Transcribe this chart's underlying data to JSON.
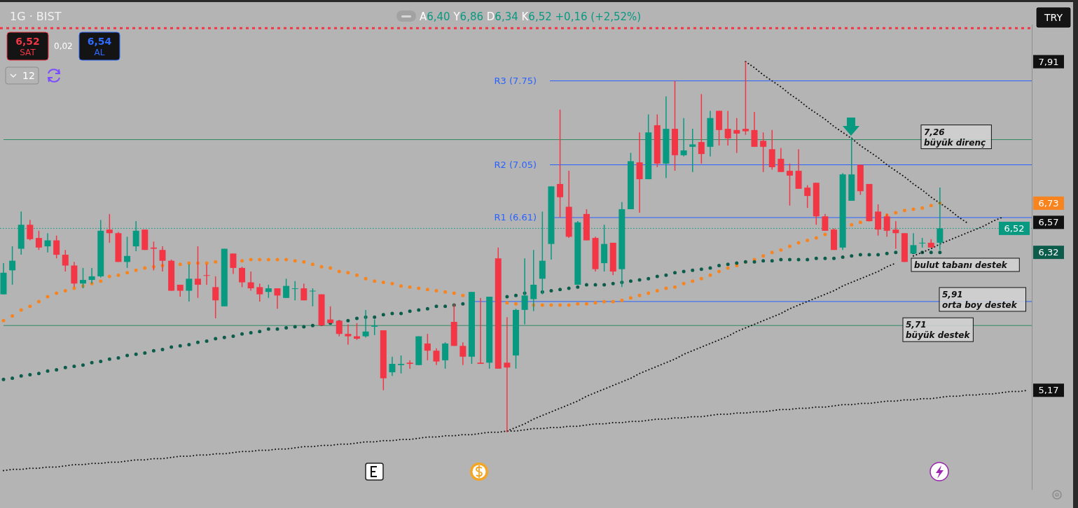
{
  "chart_data": {
    "type": "candlestick",
    "title": "1G · BIST",
    "subtitle": "A6,40 Y6,86 D6,34 K6,52 +0,16 (+2,52%)",
    "categories": [
      null,
      null,
      null,
      null,
      null,
      null,
      null,
      null,
      null,
      null,
      null,
      null,
      null,
      null,
      null,
      null,
      null,
      null,
      null,
      null,
      null,
      null,
      null,
      null,
      null,
      null,
      null,
      null,
      null,
      null,
      null,
      null,
      null,
      null,
      null,
      null,
      null,
      null,
      null,
      null,
      null,
      null,
      null,
      null,
      null,
      null,
      null,
      null,
      null,
      null,
      null,
      null,
      null,
      null,
      null,
      null,
      null,
      null,
      null,
      null,
      null,
      null,
      null,
      null,
      null,
      null,
      null,
      null,
      null,
      null,
      null,
      null,
      null,
      null,
      null,
      null,
      null,
      null,
      null,
      null,
      null,
      null,
      null,
      null,
      null,
      null,
      null,
      null,
      null,
      null,
      null,
      null,
      null,
      null,
      null,
      null,
      null,
      null,
      null,
      null,
      null,
      null,
      null,
      null,
      null,
      null,
      null,
      null,
      null,
      null,
      null,
      null,
      null,
      null,
      null,
      null,
      null
    ],
    "ohlc": [
      [
        5.97,
        6.23,
        5.97,
        6.15
      ],
      [
        6.17,
        6.37,
        6.05,
        6.25
      ],
      [
        6.35,
        6.66,
        6.3,
        6.55
      ],
      [
        6.55,
        6.59,
        6.42,
        6.43
      ],
      [
        6.44,
        6.5,
        6.34,
        6.36
      ],
      [
        6.37,
        6.48,
        6.32,
        6.42
      ],
      [
        6.42,
        6.46,
        6.27,
        6.3
      ],
      [
        6.3,
        6.34,
        6.16,
        6.21
      ],
      [
        6.21,
        6.24,
        6.03,
        6.06
      ],
      [
        6.06,
        6.19,
        6.02,
        6.09
      ],
      [
        6.09,
        6.19,
        6.06,
        6.12
      ],
      [
        6.12,
        6.59,
        6.11,
        6.5
      ],
      [
        6.51,
        6.64,
        6.4,
        6.48
      ],
      [
        6.48,
        6.49,
        6.24,
        6.24
      ],
      [
        6.24,
        6.45,
        6.19,
        6.29
      ],
      [
        6.37,
        6.58,
        6.33,
        6.5
      ],
      [
        6.51,
        6.51,
        6.34,
        6.34
      ],
      [
        6.36,
        6.41,
        6.17,
        6.35
      ],
      [
        6.34,
        6.37,
        6.16,
        6.25
      ],
      [
        6.25,
        6.26,
        6.0,
        6.0
      ],
      [
        6.05,
        6.05,
        5.95,
        6.0
      ],
      [
        6.0,
        6.22,
        5.91,
        6.1
      ],
      [
        6.1,
        6.37,
        5.94,
        6.05
      ],
      [
        6.13,
        6.22,
        6.05,
        6.13
      ],
      [
        6.03,
        6.12,
        5.77,
        5.92
      ],
      [
        5.87,
        6.35,
        5.87,
        6.35
      ],
      [
        6.31,
        6.31,
        6.14,
        6.19
      ],
      [
        6.19,
        6.2,
        6.03,
        6.07
      ],
      [
        6.07,
        6.16,
        6.0,
        6.02
      ],
      [
        6.03,
        6.06,
        5.91,
        5.97
      ],
      [
        5.99,
        6.05,
        5.94,
        6.02
      ],
      [
        6.02,
        6.02,
        5.85,
        5.96
      ],
      [
        5.94,
        6.1,
        5.94,
        6.04
      ],
      [
        6.02,
        6.08,
        5.92,
        6.02
      ],
      [
        6.02,
        6.06,
        5.92,
        5.92
      ],
      [
        6.0,
        6.02,
        5.87,
        6.0
      ],
      [
        5.97,
        5.97,
        5.71,
        5.71
      ],
      [
        5.76,
        5.87,
        5.73,
        5.73
      ],
      [
        5.75,
        5.75,
        5.62,
        5.64
      ],
      [
        5.64,
        5.72,
        5.55,
        5.62
      ],
      [
        5.62,
        5.73,
        5.59,
        5.6
      ],
      [
        5.62,
        5.84,
        5.61,
        5.66
      ],
      [
        5.7,
        5.76,
        5.63,
        5.71
      ],
      [
        5.67,
        5.67,
        5.17,
        5.27
      ],
      [
        5.32,
        5.45,
        5.29,
        5.39
      ],
      [
        5.38,
        5.46,
        5.31,
        5.39
      ],
      [
        5.4,
        5.42,
        5.35,
        5.39
      ],
      [
        5.38,
        5.62,
        5.38,
        5.62
      ],
      [
        5.56,
        5.64,
        5.42,
        5.5
      ],
      [
        5.5,
        5.52,
        5.38,
        5.41
      ],
      [
        5.42,
        5.57,
        5.35,
        5.56
      ],
      [
        5.74,
        5.89,
        5.54,
        5.54
      ],
      [
        5.54,
        5.57,
        5.38,
        5.45
      ],
      [
        5.45,
        5.99,
        5.39,
        5.99
      ],
      [
        5.4,
        5.94,
        5.39,
        5.39
      ],
      [
        5.4,
        5.95,
        5.35,
        5.95
      ],
      [
        6.27,
        6.36,
        5.35,
        5.35
      ],
      [
        5.4,
        5.78,
        4.82,
        5.36
      ],
      [
        5.46,
        5.85,
        5.35,
        5.84
      ],
      [
        5.84,
        6.27,
        5.72,
        5.96
      ],
      [
        5.93,
        6.34,
        5.83,
        6.05
      ],
      [
        6.1,
        6.66,
        5.97,
        6.25
      ],
      [
        6.39,
        6.87,
        6.26,
        6.87
      ],
      [
        6.89,
        7.51,
        6.61,
        6.78
      ],
      [
        6.7,
        7.0,
        6.44,
        6.45
      ],
      [
        6.05,
        6.58,
        6.05,
        6.57
      ],
      [
        6.64,
        6.68,
        6.42,
        6.42
      ],
      [
        6.44,
        6.45,
        6.16,
        6.18
      ],
      [
        6.23,
        6.55,
        6.16,
        6.39
      ],
      [
        6.4,
        6.4,
        6.13,
        6.16
      ],
      [
        6.18,
        6.74,
        6.03,
        6.68
      ],
      [
        6.68,
        7.15,
        6.68,
        7.08
      ],
      [
        7.07,
        7.32,
        6.65,
        6.93
      ],
      [
        6.93,
        7.47,
        6.93,
        7.32
      ],
      [
        7.38,
        7.47,
        7.03,
        7.06
      ],
      [
        7.06,
        7.62,
        6.94,
        7.35
      ],
      [
        7.35,
        7.75,
        7.0,
        7.13
      ],
      [
        7.13,
        7.44,
        7.12,
        7.17
      ],
      [
        7.2,
        7.35,
        6.99,
        7.22
      ],
      [
        7.24,
        7.64,
        7.06,
        7.14
      ],
      [
        7.2,
        7.5,
        7.12,
        7.44
      ],
      [
        7.5,
        7.5,
        7.21,
        7.34
      ],
      [
        7.35,
        7.5,
        7.21,
        7.27
      ],
      [
        7.34,
        7.44,
        7.15,
        7.31
      ],
      [
        7.35,
        7.91,
        7.3,
        7.33
      ],
      [
        7.34,
        7.49,
        7.2,
        7.2
      ],
      [
        7.25,
        7.32,
        6.99,
        7.2
      ],
      [
        7.18,
        7.34,
        7.01,
        7.03
      ],
      [
        7.1,
        7.19,
        6.99,
        6.99
      ],
      [
        7.0,
        7.06,
        6.71,
        6.96
      ],
      [
        7.0,
        7.18,
        6.85,
        6.85
      ],
      [
        6.86,
        6.88,
        6.69,
        6.79
      ],
      [
        6.9,
        6.9,
        6.55,
        6.62
      ],
      [
        6.62,
        6.64,
        6.5,
        6.5
      ],
      [
        6.51,
        6.52,
        6.34,
        6.34
      ],
      [
        6.36,
        6.98,
        6.34,
        6.97
      ],
      [
        6.75,
        7.28,
        6.75,
        6.97
      ],
      [
        7.05,
        7.05,
        6.8,
        6.83
      ],
      [
        6.89,
        6.89,
        6.58,
        6.58
      ],
      [
        6.66,
        6.72,
        6.46,
        6.51
      ],
      [
        6.62,
        6.64,
        6.45,
        6.5
      ],
      [
        6.51,
        6.58,
        6.35,
        6.48
      ],
      [
        6.48,
        6.48,
        6.24,
        6.24
      ],
      [
        6.31,
        6.48,
        6.31,
        6.38
      ],
      [
        6.4,
        6.44,
        6.36,
        6.4
      ],
      [
        6.4,
        6.43,
        6.36,
        6.36
      ],
      [
        6.4,
        6.86,
        6.34,
        6.52
      ],
      null,
      null,
      null,
      null,
      null,
      null,
      null,
      null,
      null,
      null
    ],
    "colors": [
      "#089981",
      "#089981",
      "#089981",
      "#f23645",
      "#f23645",
      "#089981",
      "#f23645",
      "#f23645",
      "#f23645",
      "#089981",
      "#089981",
      "#089981",
      "#f23645",
      "#f23645",
      "#089981",
      "#089981",
      "#f23645",
      "#f23645",
      "#f23645",
      "#f23645",
      "#f23645",
      "#089981",
      "#f23645",
      "#f23645",
      "#f23645",
      "#089981",
      "#f23645",
      "#f23645",
      "#f23645",
      "#f23645",
      "#089981",
      "#f23645",
      "#089981",
      "#089981",
      "#f23645",
      "#089981",
      "#f23645",
      "#f23645",
      "#f23645",
      "#f23645",
      "#f23645",
      "#089981",
      "#089981",
      "#f23645",
      "#089981",
      "#089981",
      "#f23645",
      "#089981",
      "#f23645",
      "#f23645",
      "#089981",
      "#f23645",
      "#f23645",
      "#089981",
      "#f23645",
      "#089981",
      "#f23645",
      "#f23645",
      "#089981",
      "#089981",
      "#089981",
      "#089981",
      "#089981",
      "#f23645",
      "#f23645",
      "#089981",
      "#f23645",
      "#f23645",
      "#089981",
      "#f23645",
      "#089981",
      "#089981",
      "#f23645",
      "#089981",
      "#f23645",
      "#089981",
      "#f23645",
      "#089981",
      "#089981",
      "#f23645",
      "#089981",
      "#f23645",
      "#f23645",
      "#f23645",
      "#f23645",
      "#f23645",
      "#f23645",
      "#f23645",
      "#f23645",
      "#f23645",
      "#f23645",
      "#f23645",
      "#f23645",
      "#f23645",
      "#f23645",
      "#089981",
      "#089981",
      "#f23645",
      "#f23645",
      "#f23645",
      "#f23645",
      "#f23645",
      "#f23645",
      "#089981",
      "#089981",
      "#f23645",
      "#089981",
      null,
      null,
      null,
      null,
      null,
      null,
      null,
      null,
      null,
      null
    ],
    "series": [
      {
        "type": "line",
        "color": "#f7841f",
        "line_style": "dotted",
        "values": [
          5.75,
          5.79,
          5.84,
          5.87,
          5.91,
          5.95,
          5.98,
          6.0,
          6.02,
          6.04,
          6.06,
          6.08,
          6.12,
          6.13,
          6.15,
          6.17,
          6.19,
          6.2,
          6.21,
          null,
          6.22,
          6.23,
          6.23,
          6.23,
          6.24,
          null,
          6.25,
          6.25,
          6.26,
          6.26,
          6.26,
          6.26,
          6.26,
          6.25,
          6.24,
          6.22,
          6.2,
          6.19,
          6.16,
          6.15,
          6.13,
          6.1,
          6.08,
          6.07,
          6.06,
          6.04,
          6.03,
          6.02,
          6.01,
          6.0,
          5.99,
          5.98,
          5.96,
          null,
          null,
          null,
          null,
          5.9,
          5.89,
          5.89,
          5.88,
          5.88,
          5.88,
          5.88,
          5.88,
          5.89,
          5.89,
          5.9,
          5.91,
          5.91,
          5.92,
          5.94,
          5.96,
          5.98,
          6.0,
          6.02,
          6.03,
          6.06,
          6.08,
          6.1,
          6.13,
          6.16,
          6.19,
          6.21,
          6.24,
          6.26,
          6.29,
          6.32,
          6.34,
          6.37,
          6.4,
          6.42,
          6.44,
          6.47,
          6.5,
          null,
          6.55,
          6.57,
          6.59,
          null,
          6.63,
          6.65,
          6.67,
          6.68,
          6.69,
          6.71,
          6.73,
          null,
          null,
          null,
          null,
          null,
          null,
          null,
          null,
          null,
          null
        ]
      },
      {
        "type": "line",
        "color": "#0b5c4a",
        "line_style": "dotted",
        "values": [
          5.26,
          5.27,
          5.29,
          5.3,
          5.31,
          5.33,
          5.34,
          5.36,
          5.37,
          5.38,
          5.4,
          5.41,
          5.43,
          5.44,
          5.46,
          5.47,
          5.48,
          5.5,
          5.51,
          5.53,
          5.54,
          5.55,
          5.57,
          5.58,
          5.6,
          5.61,
          5.62,
          5.64,
          5.65,
          5.66,
          5.68,
          5.68,
          5.69,
          5.7,
          5.7,
          5.71,
          5.72,
          5.73,
          5.74,
          5.75,
          5.77,
          5.78,
          5.78,
          5.8,
          5.81,
          5.81,
          5.83,
          5.84,
          5.85,
          5.87,
          5.87,
          5.88,
          5.89,
          null,
          null,
          null,
          null,
          5.95,
          5.96,
          5.98,
          5.99,
          5.99,
          6.0,
          6.01,
          6.02,
          6.03,
          6.05,
          6.05,
          6.05,
          6.06,
          6.07,
          6.08,
          6.09,
          6.1,
          6.12,
          6.13,
          6.15,
          6.16,
          6.17,
          6.18,
          6.19,
          6.21,
          6.22,
          6.23,
          6.24,
          6.24,
          6.25,
          6.25,
          6.26,
          6.26,
          6.26,
          6.26,
          6.27,
          6.27,
          6.27,
          6.28,
          6.29,
          6.3,
          6.3,
          6.3,
          6.31,
          6.32,
          null,
          6.32,
          6.32,
          6.32,
          6.32,
          null,
          null,
          null,
          null,
          null,
          null,
          null,
          null,
          null,
          null
        ]
      },
      {
        "type": "line",
        "color": "#111111",
        "line_style": "dotted",
        "values": [
          4.5,
          4.51,
          4.51,
          4.52,
          4.52,
          4.53,
          4.53,
          4.54,
          4.55,
          4.55,
          4.56,
          4.56,
          4.57,
          4.57,
          4.58,
          4.59,
          4.59,
          4.6,
          4.6,
          4.61,
          4.62,
          4.62,
          4.63,
          4.63,
          4.64,
          4.64,
          4.65,
          4.66,
          4.66,
          4.67,
          4.67,
          4.68,
          4.68,
          4.69,
          4.7,
          4.7,
          4.71,
          4.71,
          4.72,
          4.72,
          4.73,
          4.74,
          4.74,
          4.75,
          4.75,
          4.76,
          4.76,
          4.77,
          4.78,
          4.78,
          4.79,
          4.79,
          4.8,
          4.8,
          4.81,
          4.82,
          4.82,
          4.83,
          4.83,
          4.84,
          4.85,
          4.85,
          4.86,
          4.86,
          4.87,
          4.87,
          4.88,
          4.89,
          4.89,
          4.9,
          4.9,
          4.91,
          4.91,
          4.92,
          4.93,
          4.93,
          4.94,
          4.94,
          4.95,
          4.95,
          4.96,
          4.97,
          4.97,
          4.98,
          4.98,
          4.99,
          4.99,
          5.0,
          5.01,
          5.01,
          5.02,
          5.02,
          5.03,
          5.03,
          5.04,
          5.05,
          5.05,
          5.06,
          5.06,
          5.07,
          5.08,
          5.08,
          5.09,
          5.09,
          5.1,
          5.1,
          5.11,
          5.12,
          5.12,
          5.13,
          5.13,
          5.14,
          5.14,
          5.15,
          5.16,
          5.16,
          5.17
        ]
      },
      {
        "type": "line",
        "color": "#111111",
        "line_style": "dotted",
        "values": [
          null,
          null,
          null,
          null,
          null,
          null,
          null,
          null,
          null,
          null,
          null,
          null,
          null,
          null,
          null,
          null,
          null,
          null,
          null,
          null,
          null,
          null,
          null,
          null,
          null,
          null,
          null,
          null,
          null,
          null,
          null,
          null,
          null,
          null,
          null,
          null,
          null,
          null,
          null,
          null,
          null,
          null,
          null,
          null,
          null,
          null,
          null,
          null,
          null,
          null,
          null,
          null,
          null,
          null,
          null,
          null,
          null,
          4.83,
          4.86,
          4.89,
          4.93,
          4.96,
          4.99,
          5.02,
          5.05,
          5.08,
          5.12,
          5.15,
          5.18,
          5.21,
          5.24,
          5.27,
          5.31,
          5.34,
          5.37,
          5.4,
          5.43,
          5.47,
          5.5,
          5.53,
          5.56,
          5.59,
          5.62,
          5.66,
          5.69,
          5.72,
          5.75,
          5.78,
          5.81,
          5.85,
          5.88,
          5.91,
          5.94,
          5.97,
          6.0,
          6.04,
          6.07,
          6.1,
          6.13,
          6.16,
          6.2,
          6.23,
          null,
          6.29,
          6.32,
          6.35,
          6.39,
          6.42,
          6.45,
          6.48,
          6.51,
          6.54,
          6.58,
          6.61,
          null,
          null,
          null
        ]
      },
      {
        "type": "line",
        "color": "#111111",
        "line_style": "dotted",
        "values": [
          null,
          null,
          null,
          null,
          null,
          null,
          null,
          null,
          null,
          null,
          null,
          null,
          null,
          null,
          null,
          null,
          null,
          null,
          null,
          null,
          null,
          null,
          null,
          null,
          null,
          null,
          null,
          null,
          null,
          null,
          null,
          null,
          null,
          null,
          null,
          null,
          null,
          null,
          null,
          null,
          null,
          null,
          null,
          null,
          null,
          null,
          null,
          null,
          null,
          null,
          null,
          null,
          null,
          null,
          null,
          null,
          null,
          null,
          null,
          null,
          null,
          null,
          null,
          null,
          null,
          null,
          null,
          null,
          null,
          null,
          null,
          null,
          null,
          null,
          null,
          null,
          null,
          null,
          null,
          null,
          null,
          null,
          null,
          null,
          7.91,
          7.86,
          7.8,
          7.75,
          7.7,
          7.64,
          7.59,
          7.53,
          7.48,
          7.43,
          7.37,
          7.32,
          7.27,
          7.21,
          7.16,
          7.11,
          7.05,
          7.0,
          6.95,
          6.89,
          6.84,
          6.78,
          6.73,
          6.68,
          6.62,
          6.57,
          null,
          null,
          null,
          null,
          null,
          null,
          null
        ]
      }
    ],
    "ylim": [
      4.34,
      8.22
    ],
    "yticks": [
      {
        "value": 7.91,
        "label": "7,91"
      },
      {
        "value": 6.73,
        "label": "6,73"
      },
      {
        "value": 6.57,
        "label": "6,57"
      },
      {
        "value": 6.32,
        "label": "6,32"
      },
      {
        "value": 5.17,
        "label": "5,17"
      }
    ],
    "tick_labels": "y",
    "ref_lines": [
      {
        "axis": "y",
        "value": 7.75,
        "label": "R3 (7.75)",
        "color": "#2962ff"
      },
      {
        "axis": "y",
        "value": 7.05,
        "label": "R2 (7.05)",
        "color": "#2962ff"
      },
      {
        "axis": "y",
        "value": 6.61,
        "label": "R1 (6.61)",
        "color": "#2962ff"
      },
      {
        "axis": "y",
        "value": 7.26,
        "label": "7,26\nbüyük direnç",
        "color": "#2f8a64"
      },
      {
        "axis": "y",
        "value": 5.91,
        "label": "5,91\norta boy destek",
        "color": "#2962ff"
      },
      {
        "axis": "y",
        "value": 5.71,
        "label": "5,71\nbüyük destek",
        "color": "#2f8a64"
      },
      {
        "axis": "y",
        "value": 6.52,
        "label": "6,52",
        "color": "#089981",
        "line_style": "dotted"
      },
      {
        "axis": "y",
        "value": 8.19,
        "color": "#f23645",
        "line_style": "dotted"
      }
    ],
    "annotations": [
      "bulut tabanı destek",
      "6,52\nSAT",
      "0,02",
      "6,54\nAL",
      "12",
      "TRY"
    ]
  }
}
